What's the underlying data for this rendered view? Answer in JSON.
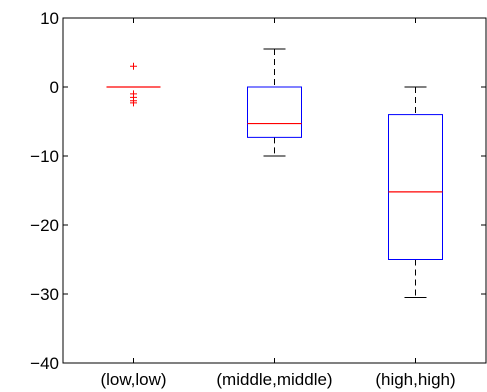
{
  "chart_data": {
    "type": "box",
    "title": "",
    "xlabel": "",
    "ylabel": "",
    "ylim": [
      -40,
      10
    ],
    "yticks": [
      10,
      0,
      -10,
      -20,
      -30,
      -40
    ],
    "ytick_labels": [
      "10",
      "0",
      "−10",
      "−20",
      "−30",
      "−40"
    ],
    "grid": false,
    "legend": "none",
    "categories": [
      "(low,low)",
      "(middle,middle)",
      "(high,high)"
    ],
    "boxes": [
      {
        "category": "(low,low)",
        "whisker_low": 0,
        "q1": 0,
        "median": 0,
        "q3": 0,
        "whisker_high": 0,
        "outliers": [
          3,
          -1,
          -1.5,
          -2,
          -2.3
        ]
      },
      {
        "category": "(middle,middle)",
        "whisker_low": -10,
        "q1": -7.3,
        "median": -5.3,
        "q3": 0,
        "whisker_high": 5.5,
        "outliers": []
      },
      {
        "category": "(high,high)",
        "whisker_low": -30.5,
        "q1": -25,
        "median": -15.2,
        "q3": -4,
        "whisker_high": 0,
        "outliers": []
      }
    ],
    "colors": {
      "box": "#0000ff",
      "median": "#ff0000",
      "whisker": "#000000",
      "outlier": "#ff0000",
      "axis": "#000000"
    }
  }
}
